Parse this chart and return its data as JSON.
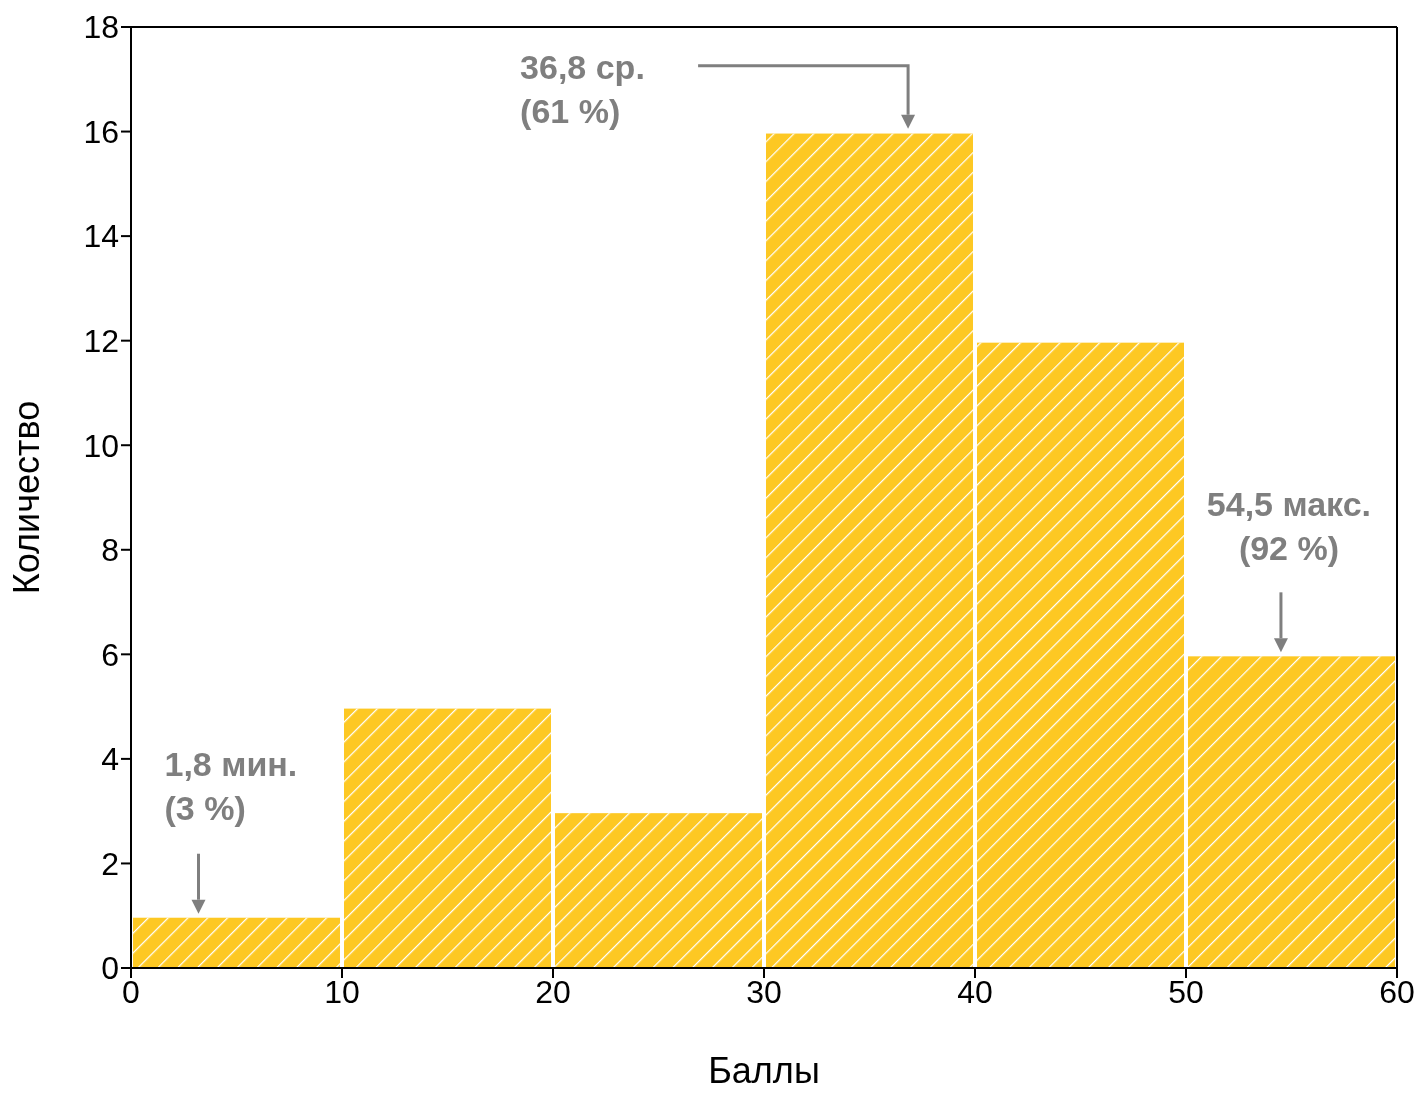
{
  "chart_data": {
    "type": "histogram",
    "xlabel": "Баллы",
    "ylabel": "Количество",
    "bins": [
      0,
      10,
      20,
      30,
      40,
      50,
      60
    ],
    "values": [
      1,
      5,
      3,
      16,
      12,
      6
    ],
    "color": "#fdc823",
    "xlim": [
      0,
      60
    ],
    "xticks": [
      0,
      10,
      20,
      30,
      40,
      50,
      60
    ],
    "ylim": [
      0,
      18
    ],
    "yticks": [
      0,
      2,
      4,
      6,
      8,
      10,
      12,
      14,
      16,
      18
    ],
    "grid": false,
    "legend": false,
    "annotations": [
      {
        "text": "1,8 мин.\n(3 %)",
        "x": 3.2,
        "y": 1
      },
      "36,8 ср.\n(61 %)",
      {
        "text": "54,5 макс.\n(92 %)",
        "x": 54.5,
        "y": 6
      }
    ]
  }
}
